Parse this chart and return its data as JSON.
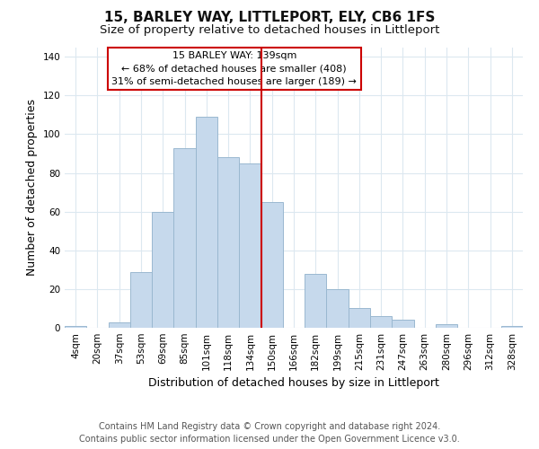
{
  "title": "15, BARLEY WAY, LITTLEPORT, ELY, CB6 1FS",
  "subtitle": "Size of property relative to detached houses in Littleport",
  "xlabel": "Distribution of detached houses by size in Littleport",
  "ylabel": "Number of detached properties",
  "bar_labels": [
    "4sqm",
    "20sqm",
    "37sqm",
    "53sqm",
    "69sqm",
    "85sqm",
    "101sqm",
    "118sqm",
    "134sqm",
    "150sqm",
    "166sqm",
    "182sqm",
    "199sqm",
    "215sqm",
    "231sqm",
    "247sqm",
    "263sqm",
    "280sqm",
    "296sqm",
    "312sqm",
    "328sqm"
  ],
  "bar_heights": [
    1,
    0,
    3,
    29,
    60,
    93,
    109,
    88,
    85,
    65,
    0,
    28,
    20,
    10,
    6,
    4,
    0,
    2,
    0,
    0,
    1
  ],
  "bar_color": "#c6d9ec",
  "bar_edgecolor": "#9ab8d0",
  "vline_x_index": 8,
  "vline_color": "#cc0000",
  "ylim": [
    0,
    145
  ],
  "yticks": [
    0,
    20,
    40,
    60,
    80,
    100,
    120,
    140
  ],
  "legend_title": "15 BARLEY WAY: 139sqm",
  "legend_line1": "← 68% of detached houses are smaller (408)",
  "legend_line2": "31% of semi-detached houses are larger (189) →",
  "legend_box_color": "#ffffff",
  "legend_box_edgecolor": "#cc0000",
  "footer_line1": "Contains HM Land Registry data © Crown copyright and database right 2024.",
  "footer_line2": "Contains public sector information licensed under the Open Government Licence v3.0.",
  "title_fontsize": 11,
  "subtitle_fontsize": 9.5,
  "xlabel_fontsize": 9,
  "ylabel_fontsize": 9,
  "tick_fontsize": 7.5,
  "legend_fontsize": 8,
  "footer_fontsize": 7,
  "background_color": "#ffffff",
  "grid_color": "#dce8f0"
}
